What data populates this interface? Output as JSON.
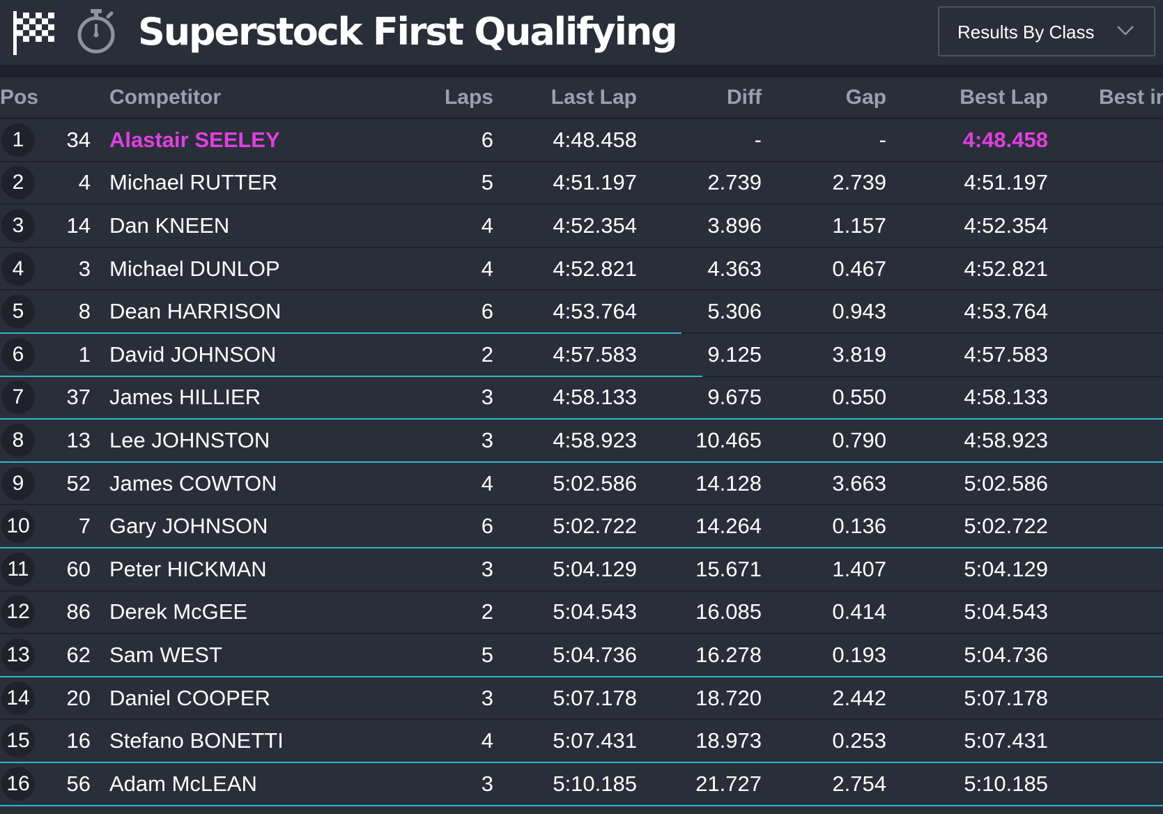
{
  "header": {
    "title": "Superstock First Qualifying",
    "select": {
      "label": "Results By Class"
    }
  },
  "columns": {
    "pos": "Pos",
    "competitor": "Competitor",
    "laps": "Laps",
    "last_lap": "Last Lap",
    "diff": "Diff",
    "gap": "Gap",
    "best_lap": "Best Lap",
    "best_in": "Best in"
  },
  "colors": {
    "background": "#2a2e39",
    "divider": "#1f222b",
    "fastest": "#e040e0",
    "highlight_line": "#2fb7c7"
  },
  "rows": [
    {
      "pos": "1",
      "num": "34",
      "name": "Alastair SEELEY",
      "laps": "6",
      "last": "4:48.458",
      "diff": "-",
      "gap": "-",
      "best": "4:48.458",
      "fastest": true
    },
    {
      "pos": "2",
      "num": "4",
      "name": "Michael RUTTER",
      "laps": "5",
      "last": "4:51.197",
      "diff": "2.739",
      "gap": "2.739",
      "best": "4:51.197"
    },
    {
      "pos": "3",
      "num": "14",
      "name": "Dan KNEEN",
      "laps": "4",
      "last": "4:52.354",
      "diff": "3.896",
      "gap": "1.157",
      "best": "4:52.354"
    },
    {
      "pos": "4",
      "num": "3",
      "name": "Michael DUNLOP",
      "laps": "4",
      "last": "4:52.821",
      "diff": "4.363",
      "gap": "0.467",
      "best": "4:52.821"
    },
    {
      "pos": "5",
      "num": "8",
      "name": "Dean HARRISON",
      "laps": "6",
      "last": "4:53.764",
      "diff": "5.306",
      "gap": "0.943",
      "best": "4:53.764"
    },
    {
      "pos": "6",
      "num": "1",
      "name": "David JOHNSON",
      "laps": "2",
      "last": "4:57.583",
      "diff": "9.125",
      "gap": "3.819",
      "best": "4:57.583"
    },
    {
      "pos": "7",
      "num": "37",
      "name": "James HILLIER",
      "laps": "3",
      "last": "4:58.133",
      "diff": "9.675",
      "gap": "0.550",
      "best": "4:58.133"
    },
    {
      "pos": "8",
      "num": "13",
      "name": "Lee JOHNSTON",
      "laps": "3",
      "last": "4:58.923",
      "diff": "10.465",
      "gap": "0.790",
      "best": "4:58.923"
    },
    {
      "pos": "9",
      "num": "52",
      "name": "James COWTON",
      "laps": "4",
      "last": "5:02.586",
      "diff": "14.128",
      "gap": "3.663",
      "best": "5:02.586"
    },
    {
      "pos": "10",
      "num": "7",
      "name": "Gary JOHNSON",
      "laps": "6",
      "last": "5:02.722",
      "diff": "14.264",
      "gap": "0.136",
      "best": "5:02.722"
    },
    {
      "pos": "11",
      "num": "60",
      "name": "Peter HICKMAN",
      "laps": "3",
      "last": "5:04.129",
      "diff": "15.671",
      "gap": "1.407",
      "best": "5:04.129"
    },
    {
      "pos": "12",
      "num": "86",
      "name": "Derek McGEE",
      "laps": "2",
      "last": "5:04.543",
      "diff": "16.085",
      "gap": "0.414",
      "best": "5:04.543"
    },
    {
      "pos": "13",
      "num": "62",
      "name": "Sam WEST",
      "laps": "5",
      "last": "5:04.736",
      "diff": "16.278",
      "gap": "0.193",
      "best": "5:04.736"
    },
    {
      "pos": "14",
      "num": "20",
      "name": "Daniel COOPER",
      "laps": "3",
      "last": "5:07.178",
      "diff": "18.720",
      "gap": "2.442",
      "best": "5:07.178"
    },
    {
      "pos": "15",
      "num": "16",
      "name": "Stefano BONETTI",
      "laps": "4",
      "last": "5:07.431",
      "diff": "18.973",
      "gap": "0.253",
      "best": "5:07.431"
    },
    {
      "pos": "16",
      "num": "56",
      "name": "Adam McLEAN",
      "laps": "3",
      "last": "5:10.185",
      "diff": "21.727",
      "gap": "2.754",
      "best": "5:10.185"
    }
  ]
}
